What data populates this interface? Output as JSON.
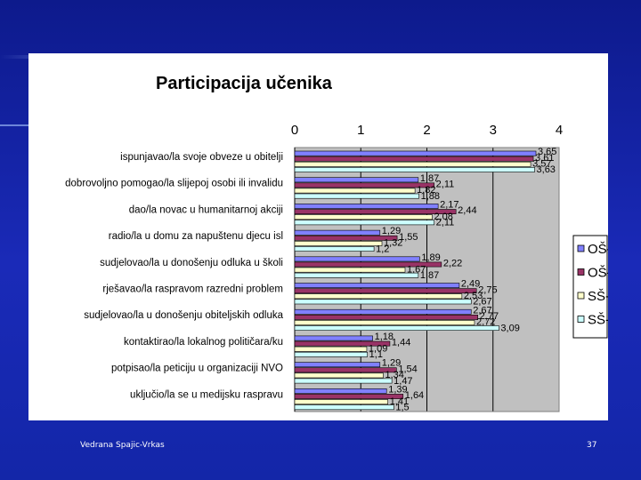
{
  "footer": {
    "author": "Vedrana Spajic-Vrkas",
    "page_number": "37"
  },
  "colors": {
    "plot_bg": "#c0c0c0",
    "series": [
      "#8080ff",
      "#993366",
      "#ffffcc",
      "#ccffff"
    ]
  },
  "chart_data": {
    "type": "bar",
    "orientation": "horizontal",
    "title": "Participacija učenika",
    "xlim": [
      0,
      4
    ],
    "xticks": [
      "0",
      "1",
      "2",
      "3",
      "4"
    ],
    "grid": true,
    "legend_position": "right",
    "categories": [
      "ispunjavao/la svoje obveze u obitelji",
      "dobrovoljno pomogao/la slijepoj osobi ili invalidu",
      "dao/la novac u humanitarnoj akciji",
      "radio/la u domu za napuštenu djecu isl",
      "sudjelovao/la u donošenju odluka u školi",
      "rješavao/la raspravom razredni problem",
      "sudjelovao/la u donošenju obiteljskih odluka",
      "kontaktirao/la lokalnog političara/ku",
      "potpisao/la peticiju u organizaciji NVO",
      "uključio/la se u medijsku raspravu"
    ],
    "series": [
      {
        "name": "OŠ-P",
        "values": [
          3.65,
          1.87,
          2.17,
          1.29,
          1.89,
          2.49,
          2.67,
          1.18,
          1.29,
          1.39
        ],
        "labels": [
          "3,65",
          "1,87",
          "2,17",
          "1,29",
          "1,89",
          "2,49",
          "2,67",
          "1,18",
          "1,29",
          "1,39"
        ]
      },
      {
        "name": "OŠ-Z",
        "values": [
          3.61,
          2.11,
          2.44,
          1.55,
          2.22,
          2.75,
          2.77,
          1.44,
          1.54,
          1.64
        ],
        "labels": [
          "3,61",
          "2,11",
          "2,44",
          "1,55",
          "2,22",
          "2,75",
          "2,77",
          "1,44",
          "1,54",
          "1,64"
        ]
      },
      {
        "name": "SŠ-P",
        "values": [
          3.57,
          1.82,
          2.08,
          1.32,
          1.67,
          2.53,
          2.72,
          1.09,
          1.34,
          1.41
        ],
        "labels": [
          "3,57",
          "1,82",
          "2,08",
          "1,32",
          "1,67",
          "2,53",
          "2,72",
          "1,09",
          "1,34",
          "1,41"
        ]
      },
      {
        "name": "SŠ-Z",
        "values": [
          3.63,
          1.88,
          2.11,
          1.2,
          1.87,
          2.67,
          3.09,
          1.1,
          1.47,
          1.5
        ],
        "labels": [
          "3,63",
          "1,88",
          "2,11",
          "1,2",
          "1,87",
          "2,67",
          "3,09",
          "1,1",
          "1,47",
          "1,5"
        ]
      }
    ]
  }
}
